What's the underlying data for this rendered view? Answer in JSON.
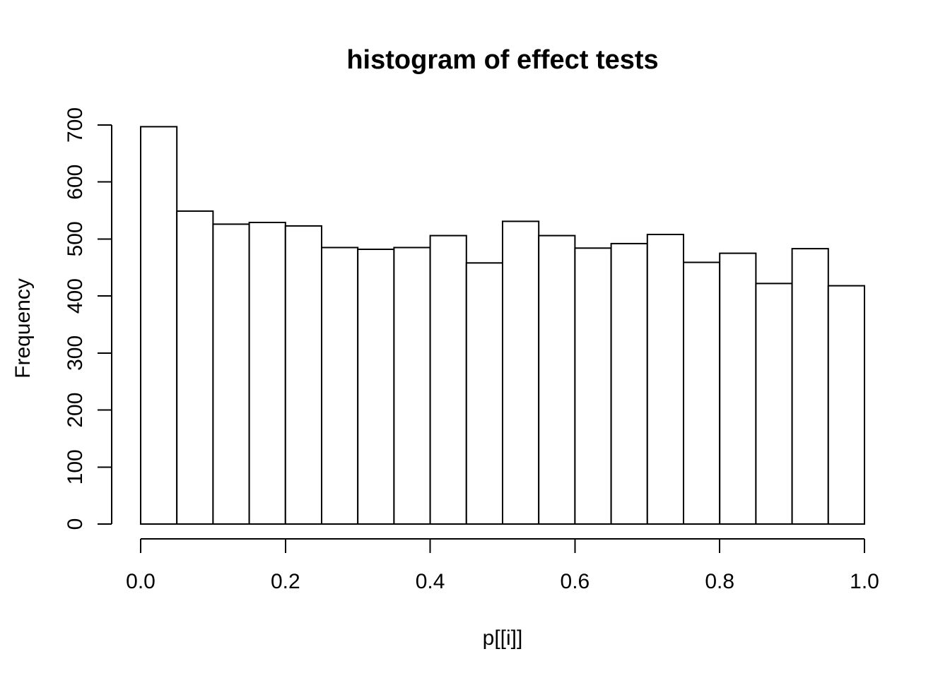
{
  "figure": {
    "background": "#ffffff",
    "foreground": "#000000"
  },
  "chart_data": {
    "type": "bar",
    "subtype": "histogram",
    "title": "histogram of effect tests",
    "xlabel": "p[[i]]",
    "ylabel": "Frequency",
    "bin_width": 0.05,
    "bin_edges": [
      0.0,
      0.05,
      0.1,
      0.15,
      0.2,
      0.25,
      0.3,
      0.35,
      0.4,
      0.45,
      0.5,
      0.55,
      0.6,
      0.65,
      0.7,
      0.75,
      0.8,
      0.85,
      0.9,
      0.95,
      1.0
    ],
    "values": [
      697,
      549,
      526,
      529,
      523,
      485,
      482,
      485,
      506,
      458,
      531,
      506,
      484,
      492,
      508,
      459,
      475,
      422,
      483,
      418
    ],
    "xlim": [
      0,
      1
    ],
    "ylim": [
      0,
      700
    ],
    "x_ticks": [
      {
        "value": 0.0,
        "label": "0.0"
      },
      {
        "value": 0.2,
        "label": "0.2"
      },
      {
        "value": 0.4,
        "label": "0.4"
      },
      {
        "value": 0.6,
        "label": "0.6"
      },
      {
        "value": 0.8,
        "label": "0.8"
      },
      {
        "value": 1.0,
        "label": "1.0"
      }
    ],
    "y_ticks": [
      {
        "value": 0,
        "label": "0"
      },
      {
        "value": 100,
        "label": "100"
      },
      {
        "value": 200,
        "label": "200"
      },
      {
        "value": 300,
        "label": "300"
      },
      {
        "value": 400,
        "label": "400"
      },
      {
        "value": 500,
        "label": "500"
      },
      {
        "value": 600,
        "label": "600"
      },
      {
        "value": 700,
        "label": "700"
      }
    ],
    "bar_fill": "#ffffff",
    "bar_stroke": "#000000",
    "axis_color": "#000000",
    "grid": false,
    "legend": false,
    "y_tick_labels_rotated": true
  }
}
